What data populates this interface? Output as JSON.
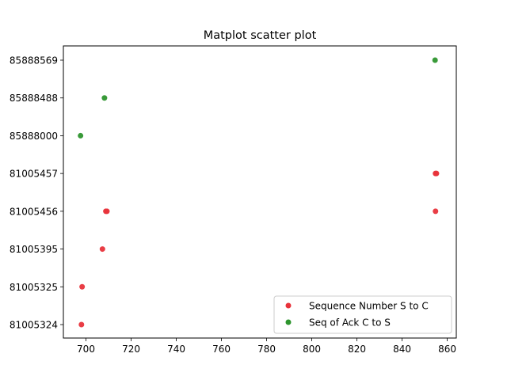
{
  "chart_data": {
    "type": "scatter",
    "title": "Matplot scatter plot",
    "xlabel": "",
    "ylabel": "",
    "xlim": [
      690,
      864
    ],
    "x_ticks": [
      700,
      720,
      740,
      760,
      780,
      800,
      820,
      840,
      860
    ],
    "y_categories": [
      "81005324",
      "81005325",
      "81005395",
      "81005456",
      "81005457",
      "85888000",
      "85888488",
      "85888569"
    ],
    "legend_position": "lower-right",
    "grid": false,
    "series": [
      {
        "name": "Sequence Number S to C",
        "color": "#e8333b",
        "points": [
          {
            "x": 698,
            "y": "81005324"
          },
          {
            "x": 698.3,
            "y": "81005325"
          },
          {
            "x": 707.3,
            "y": "81005395"
          },
          {
            "x": 708.8,
            "y": "81005456"
          },
          {
            "x": 709.3,
            "y": "81005456"
          },
          {
            "x": 854.8,
            "y": "81005456"
          },
          {
            "x": 854.8,
            "y": "81005457"
          },
          {
            "x": 855.2,
            "y": "81005457"
          }
        ]
      },
      {
        "name": "Seq of Ack C to S",
        "color": "#2e952e",
        "points": [
          {
            "x": 697.6,
            "y": "85888000"
          },
          {
            "x": 708.2,
            "y": "85888488"
          },
          {
            "x": 854.6,
            "y": "85888569"
          }
        ]
      }
    ]
  }
}
